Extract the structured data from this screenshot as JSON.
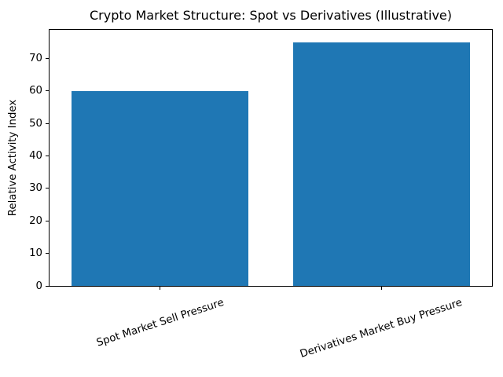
{
  "chart_data": {
    "type": "bar",
    "title": "Crypto Market Structure: Spot vs Derivatives (Illustrative)",
    "ylabel": "Relative Activity Index",
    "xlabel": "",
    "categories": [
      "Spot Market Sell Pressure",
      "Derivatives Market Buy Pressure"
    ],
    "values": [
      60,
      75
    ],
    "bar_color": "#1f77b4",
    "axis_color": "#000000",
    "text_color": "#000000",
    "background_color": "#ffffff",
    "ylim": [
      0,
      78.75
    ],
    "yticks": [
      0,
      10,
      20,
      30,
      40,
      50,
      60,
      70
    ],
    "xlim": [
      -0.5,
      1.5
    ],
    "bar_width": 0.8,
    "xtick_rotation_deg": 18,
    "grid": false,
    "legend": "none"
  }
}
